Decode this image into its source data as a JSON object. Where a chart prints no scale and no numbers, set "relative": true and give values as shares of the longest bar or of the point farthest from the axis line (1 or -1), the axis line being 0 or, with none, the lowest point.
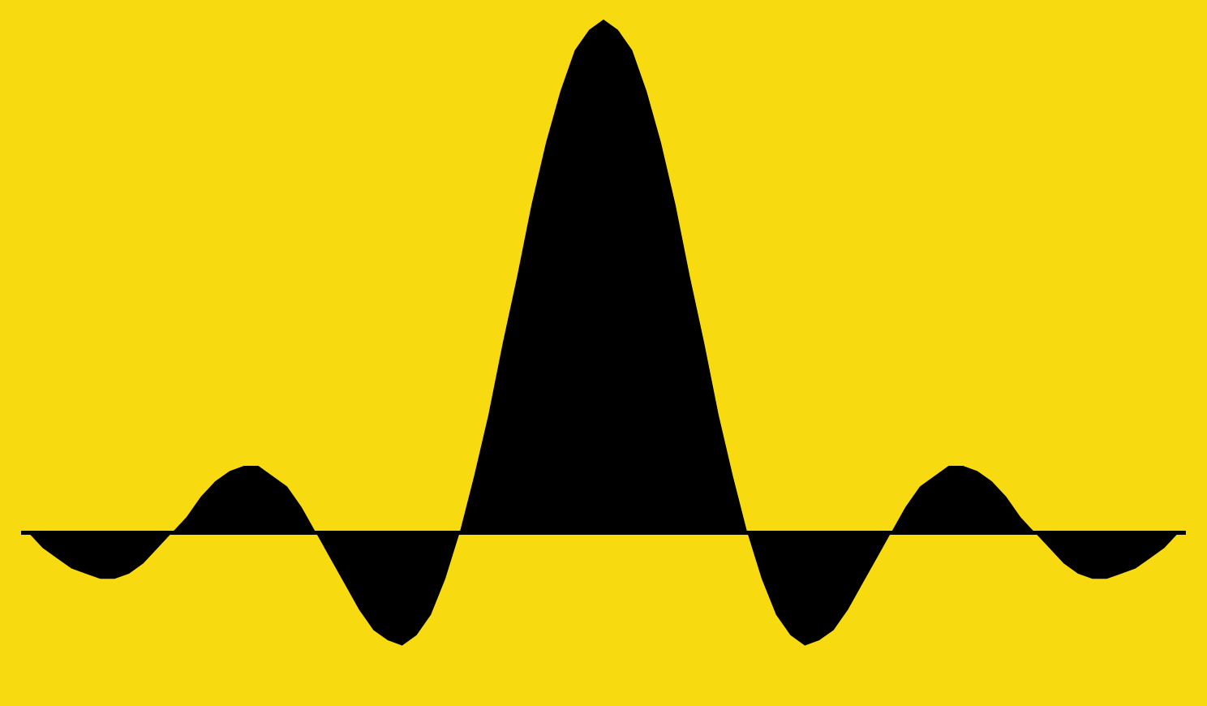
{
  "chart_data": {
    "type": "area",
    "relative": true,
    "color": "#000000",
    "categories": [
      null,
      null,
      null,
      null,
      null,
      null,
      null,
      null,
      null,
      null,
      null,
      null,
      null,
      null,
      null,
      null,
      null,
      null,
      null,
      null,
      null,
      null,
      null,
      null,
      null,
      null,
      null,
      null,
      null,
      null,
      null,
      null,
      null,
      null,
      null,
      null,
      null,
      null,
      null,
      null,
      null,
      null,
      null,
      null,
      null,
      null,
      null,
      null,
      null,
      null,
      null,
      null,
      null,
      null,
      null,
      null,
      null,
      null,
      null,
      null,
      null,
      null,
      null,
      null,
      null,
      null,
      null,
      null,
      null,
      null,
      null,
      null,
      null,
      null,
      null,
      null,
      null,
      null,
      null,
      null,
      null
    ],
    "values": [
      0,
      -0.03,
      -0.05,
      -0.07,
      -0.08,
      -0.09,
      -0.09,
      -0.08,
      -0.06,
      -0.03,
      0,
      0.03,
      0.07,
      0.1,
      0.12,
      0.13,
      0.13,
      0.11,
      0.09,
      0.05,
      0,
      -0.05,
      -0.1,
      -0.15,
      -0.19,
      -0.21,
      -0.22,
      -0.2,
      -0.16,
      -0.09,
      0,
      0.11,
      0.23,
      0.37,
      0.5,
      0.64,
      0.76,
      0.86,
      0.94,
      0.98,
      1,
      0.98,
      0.94,
      0.86,
      0.76,
      0.64,
      0.5,
      0.37,
      0.23,
      0.11,
      0,
      -0.09,
      -0.16,
      -0.2,
      -0.22,
      -0.21,
      -0.19,
      -0.15,
      -0.1,
      -0.05,
      0,
      0.05,
      0.09,
      0.11,
      0.13,
      0.13,
      0.12,
      0.1,
      0.07,
      0.03,
      0,
      -0.03,
      -0.06,
      -0.08,
      -0.09,
      -0.09,
      -0.08,
      -0.07,
      -0.05,
      -0.03,
      0
    ]
  }
}
